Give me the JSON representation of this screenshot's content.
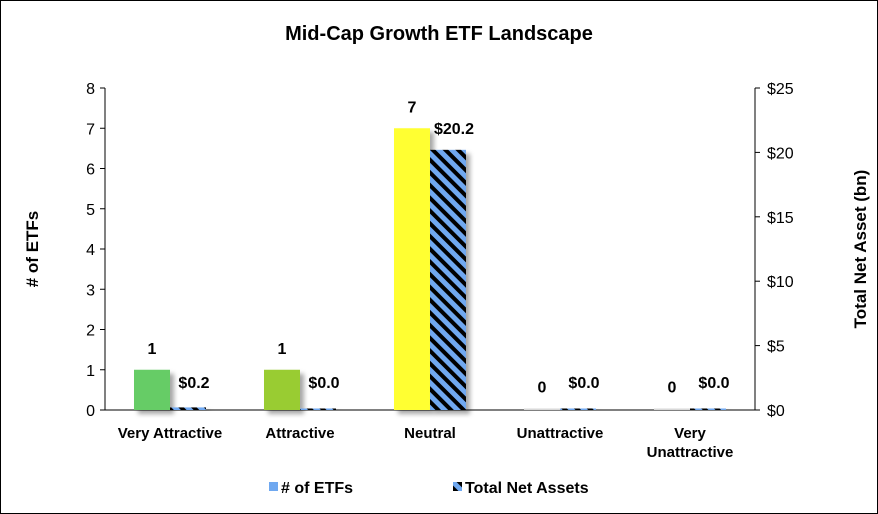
{
  "chart_data": {
    "type": "bar",
    "title": "Mid-Cap Growth ETF Landscape",
    "categories": [
      [
        "Very Attractive"
      ],
      [
        "Attractive"
      ],
      [
        "Neutral"
      ],
      [
        "Unattractive"
      ],
      [
        "Very",
        "Unattractive"
      ]
    ],
    "ylabel": "# of ETFs",
    "y2label": "Total Net Asset (bn)",
    "ylim": [
      0,
      8
    ],
    "y2lim": [
      0,
      25
    ],
    "yticks": [
      "0",
      "1",
      "2",
      "3",
      "4",
      "5",
      "6",
      "7",
      "8"
    ],
    "y2ticks": [
      "$0",
      "$5",
      "$10",
      "$15",
      "$20",
      "$25"
    ],
    "series": [
      {
        "name": "# of ETFs",
        "axis": "left",
        "values": [
          1,
          1,
          7,
          0,
          0
        ],
        "labels": [
          "1",
          "1",
          "7",
          "0",
          "0"
        ],
        "colors": [
          "#66cc66",
          "#99cc33",
          "#ffff33",
          "#d9d9d9",
          "#d9d9d9"
        ],
        "legend_color": "#6fa8f0"
      },
      {
        "name": "Total Net Assets",
        "axis": "right",
        "values": [
          0.2,
          0.0,
          20.2,
          0.0,
          0.0
        ],
        "labels": [
          "$0.2",
          "$0.0",
          "$20.2",
          "$0.0",
          "$0.0"
        ],
        "pattern": "diagonal-stripes",
        "colors": [
          "#6fa8f0",
          "#000000"
        ]
      }
    ],
    "legend_position": "bottom",
    "grid": false
  }
}
